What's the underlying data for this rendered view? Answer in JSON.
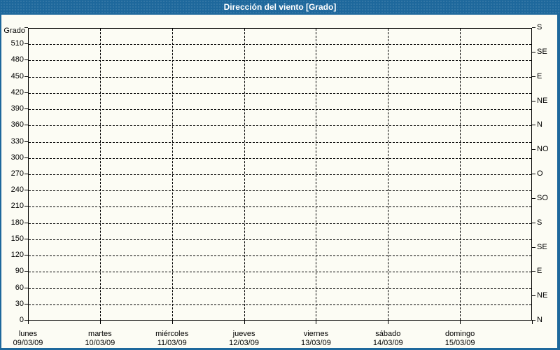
{
  "chart_data": {
    "type": "line",
    "title": "Dirección del viento [Grado]",
    "y_axis_left": {
      "title": "Grado",
      "min": 0,
      "max": 540,
      "grid_step": 30,
      "tick_labels": [
        "0",
        "30",
        "60",
        "90",
        "120",
        "150",
        "180",
        "210",
        "240",
        "270",
        "300",
        "330",
        "360",
        "390",
        "420",
        "450",
        "480",
        "510"
      ]
    },
    "y_axis_right": {
      "tick_step": 45,
      "tick_labels_bottom_to_top": [
        "N",
        "NE",
        "E",
        "SE",
        "S",
        "SO",
        "O",
        "NO",
        "N",
        "NE",
        "E",
        "SE",
        "S"
      ]
    },
    "x_axis": {
      "categories": [
        {
          "day": "lunes",
          "date": "09/03/09"
        },
        {
          "day": "martes",
          "date": "10/03/09"
        },
        {
          "day": "miércoles",
          "date": "11/03/09"
        },
        {
          "day": "jueves",
          "date": "12/03/09"
        },
        {
          "day": "viernes",
          "date": "13/03/09"
        },
        {
          "day": "sábado",
          "date": "14/03/09"
        },
        {
          "day": "domingo",
          "date": "15/03/09"
        }
      ]
    },
    "series": [],
    "grid": true,
    "legend": false
  },
  "colors": {
    "titlebar_bg": "#1E689C",
    "titlebar_text": "#FFFFFF",
    "background": "#FCFCF4",
    "plot_border": "#000000",
    "grid": "#000000",
    "label_text": "#000000"
  }
}
